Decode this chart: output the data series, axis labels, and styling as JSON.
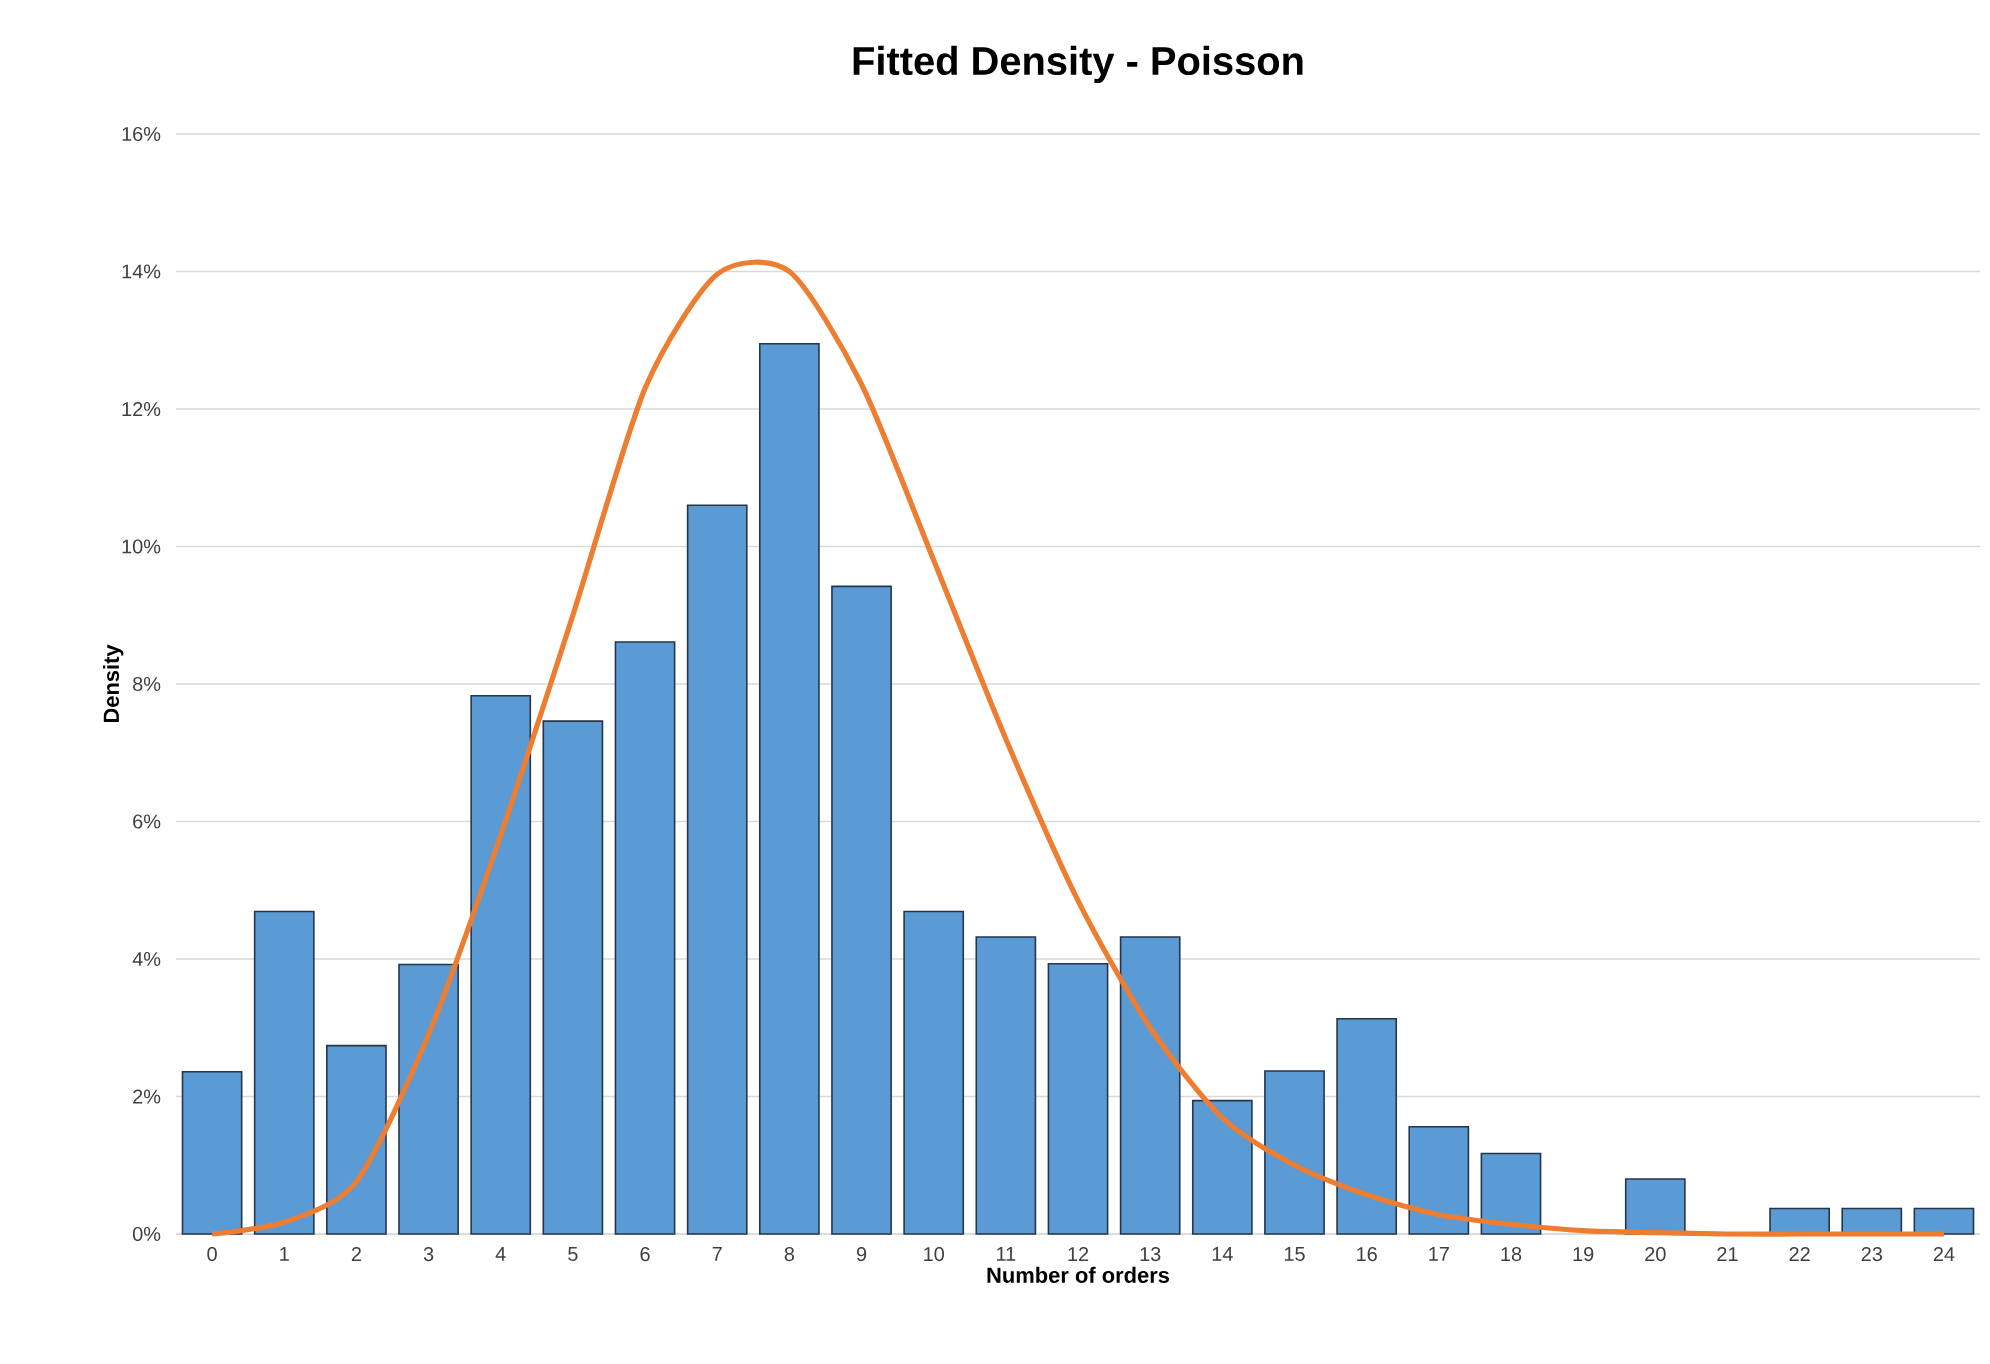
{
  "chart_data": {
    "type": "bar",
    "title": "Fitted Density - Poisson",
    "xlabel": "Number of orders",
    "ylabel": "Density",
    "categories": [
      "0",
      "1",
      "2",
      "3",
      "4",
      "5",
      "6",
      "7",
      "8",
      "9",
      "10",
      "11",
      "12",
      "13",
      "14",
      "15",
      "16",
      "17",
      "18",
      "19",
      "20",
      "21",
      "22",
      "23",
      "24"
    ],
    "series": [
      {
        "color": "#5b9bd5",
        "values": [
          2.36,
          4.69,
          2.74,
          3.92,
          7.83,
          7.46,
          8.61,
          10.6,
          12.95,
          9.42,
          4.69,
          4.32,
          3.93,
          4.32,
          1.94,
          2.37,
          3.13,
          1.56,
          1.17,
          0,
          0.8,
          0,
          0.37,
          0.37,
          0.37
        ]
      },
      {
        "type": "line",
        "color": "#ed7d31",
        "values": [
          0.0,
          0.17,
          0.76,
          2.9,
          5.8,
          9.0,
          12.3,
          13.96,
          14.0,
          12.36,
          9.8,
          7.2,
          4.85,
          3.0,
          1.69,
          1.0,
          0.57,
          0.28,
          0.14,
          0.05,
          0.02,
          0,
          0,
          0,
          0
        ]
      }
    ],
    "ylim": [
      0,
      16
    ],
    "yticks": [
      {
        "value": 0,
        "label": "0%"
      },
      {
        "value": 2,
        "label": "2%"
      },
      {
        "value": 4,
        "label": "4%"
      },
      {
        "value": 6,
        "label": "6%"
      },
      {
        "value": 8,
        "label": "8%"
      },
      {
        "value": 10,
        "label": "10%"
      },
      {
        "value": 12,
        "label": "12%"
      },
      {
        "value": 14,
        "label": "14%"
      },
      {
        "value": 16,
        "label": "16%"
      }
    ],
    "grid": "y",
    "legend": false,
    "marker": "none",
    "line_style": "solid"
  }
}
